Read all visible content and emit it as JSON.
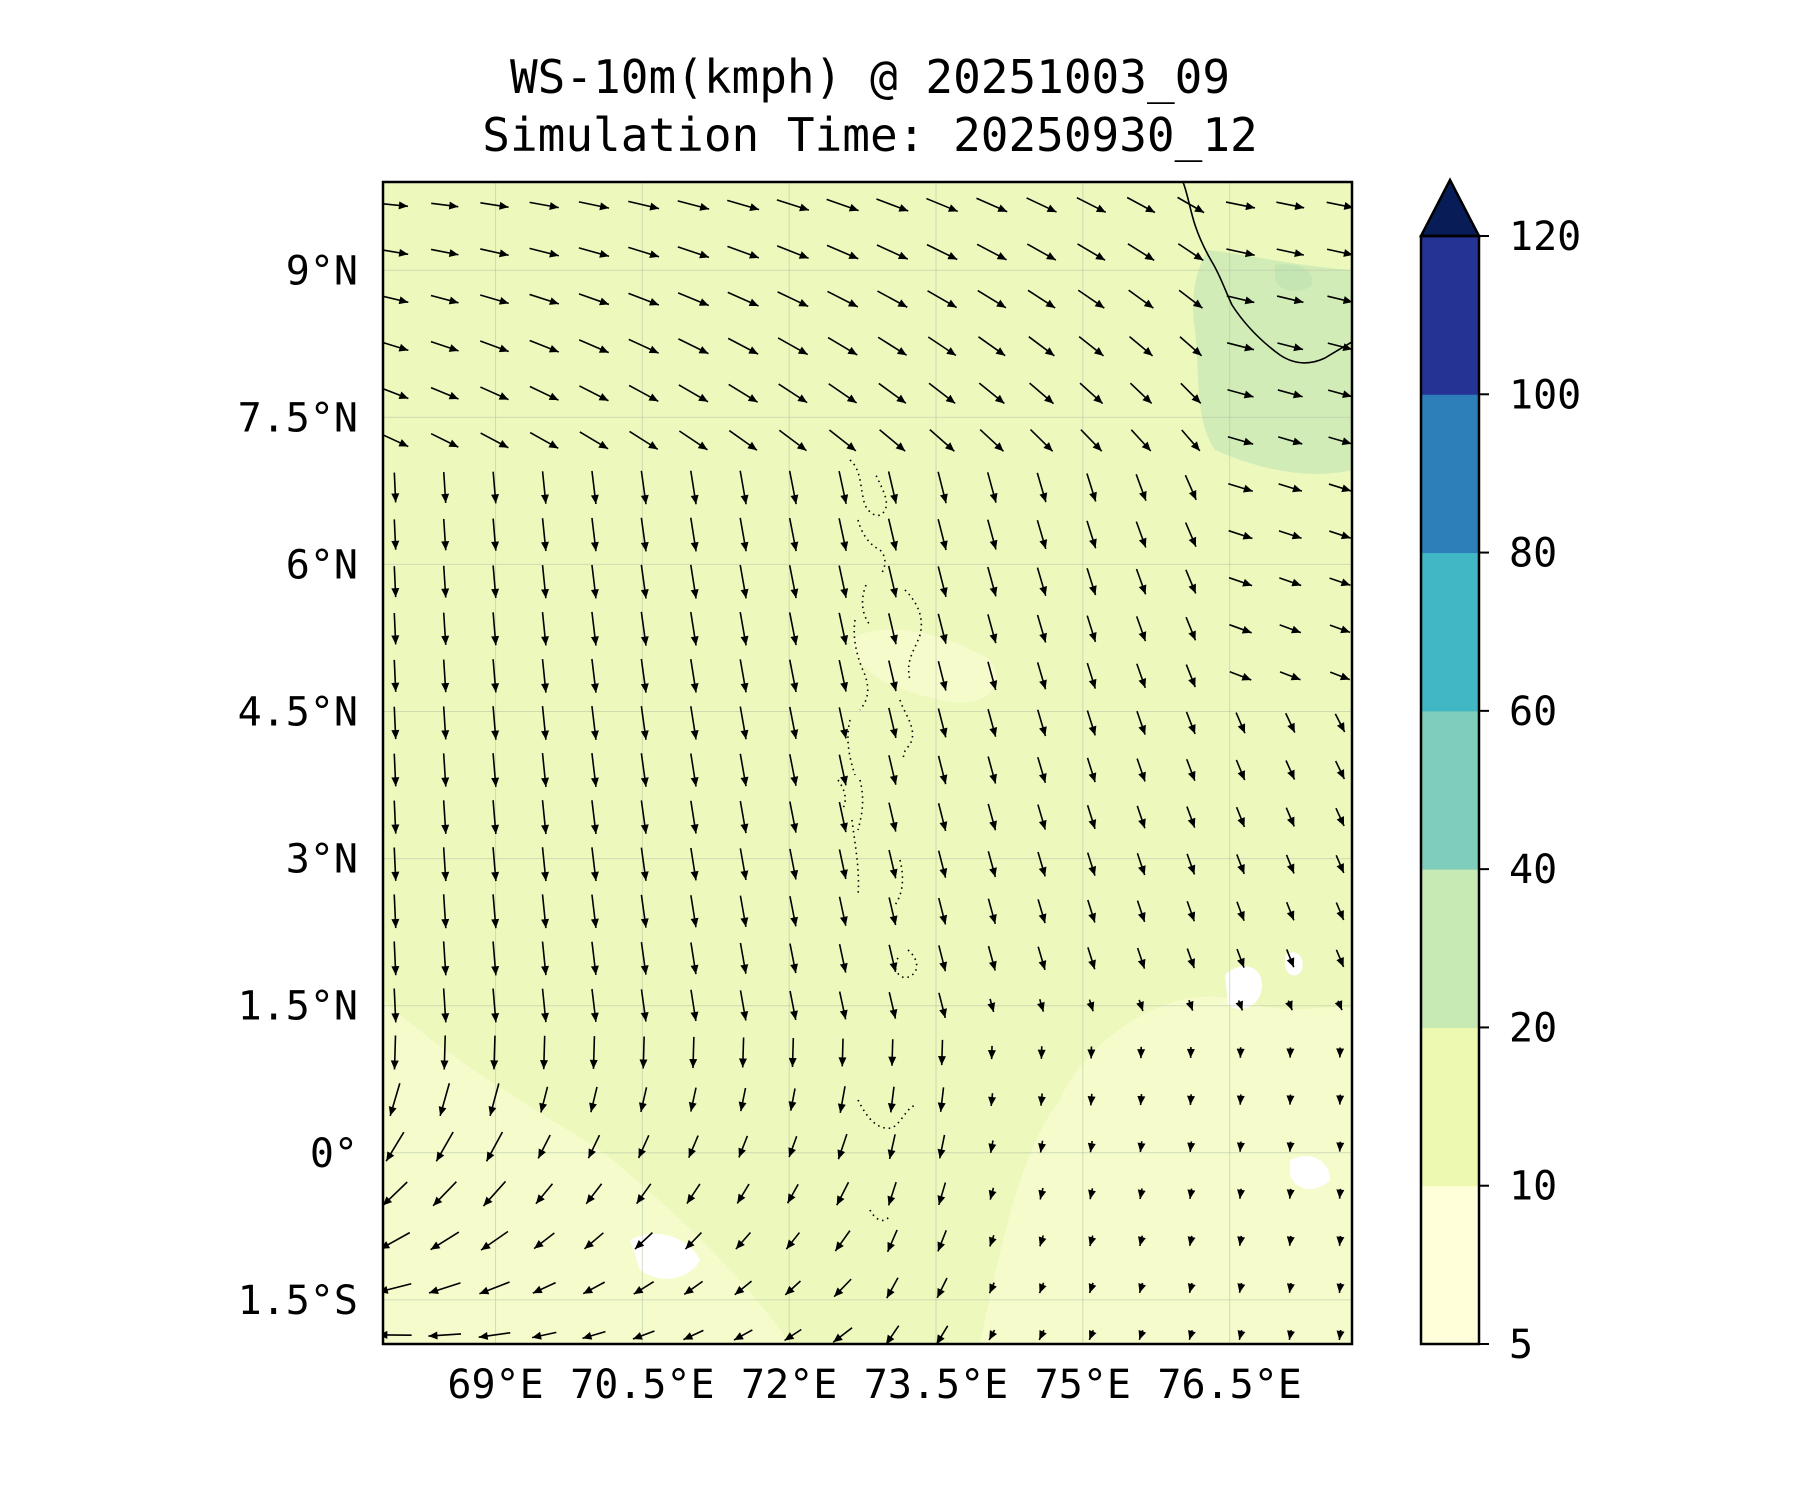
{
  "figure": {
    "title": "WS-10m(kmph) @ 20251003_09",
    "subtitle": "Simulation Time: 20250930_12"
  },
  "map": {
    "lon_range": [
      67.85,
      77.75
    ],
    "lat_range": [
      -1.95,
      9.9
    ],
    "lon_ticks": [
      {
        "value": 69,
        "label": "69°E"
      },
      {
        "value": 70.5,
        "label": "70.5°E"
      },
      {
        "value": 72,
        "label": "72°E"
      },
      {
        "value": 73.5,
        "label": "73.5°E"
      },
      {
        "value": 75,
        "label": "75°E"
      },
      {
        "value": 76.5,
        "label": "76.5°E"
      }
    ],
    "lat_ticks": [
      {
        "value": 9,
        "label": "9°N"
      },
      {
        "value": 7.5,
        "label": "7.5°N"
      },
      {
        "value": 6,
        "label": "6°N"
      },
      {
        "value": 4.5,
        "label": "4.5°N"
      },
      {
        "value": 3,
        "label": "3°N"
      },
      {
        "value": 1.5,
        "label": "1.5°N"
      },
      {
        "value": 0,
        "label": "0°"
      },
      {
        "value": -1.5,
        "label": "1.5°S"
      }
    ],
    "background_color": "#edf8bd",
    "gridlines": true,
    "vector_field": "wind at 10 m, arrows"
  },
  "colorbar": {
    "levels": [
      "5",
      "10",
      "20",
      "40",
      "60",
      "80",
      "100",
      "120"
    ],
    "colors": [
      "#ffffd9",
      "#edf8b1",
      "#c7e9b4",
      "#7fcdbb",
      "#41b6c4",
      "#2c7fb8",
      "#253494"
    ],
    "extend_color": "#081d58",
    "extend": "max"
  }
}
